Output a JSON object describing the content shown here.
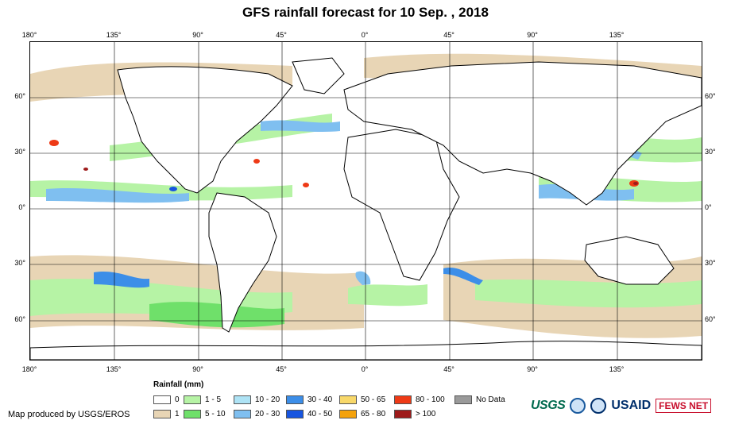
{
  "title": "GFS rainfall forecast for 10 Sep. , 2018",
  "longitude_labels": [
    "180°",
    "135°",
    "90°",
    "45°",
    "0°",
    "45°",
    "90°",
    "135°"
  ],
  "latitude_labels_left": [
    "60°",
    "30°",
    "0°",
    "30°",
    "60°"
  ],
  "latitude_labels_right": [
    "60°",
    "30°",
    "0°",
    "30°",
    "60°"
  ],
  "legend": {
    "title": "Rainfall (mm)",
    "items": [
      {
        "label": "0",
        "color": "#ffffff"
      },
      {
        "label": "1",
        "color": "#e8d5b5"
      },
      {
        "label": "1 - 5",
        "color": "#b6f3a5"
      },
      {
        "label": "5 - 10",
        "color": "#6fe06a"
      },
      {
        "label": "10 - 20",
        "color": "#aee3f5"
      },
      {
        "label": "20 - 30",
        "color": "#7fbff0"
      },
      {
        "label": "30 - 40",
        "color": "#3c8ee8"
      },
      {
        "label": "40 - 50",
        "color": "#1755e0"
      },
      {
        "label": "50 - 65",
        "color": "#f8d86a"
      },
      {
        "label": "65 - 80",
        "color": "#f4a20c"
      },
      {
        "label": "80 - 100",
        "color": "#ee3a16"
      },
      {
        "label": "> 100",
        "color": "#9e1b1b"
      },
      {
        "label": "No Data",
        "color": "#9a9a9a"
      }
    ]
  },
  "credit": "Map produced by USGS/EROS",
  "logos": {
    "usgs": "USGS",
    "usaid": "USAID",
    "fews": "FEWS NET"
  }
}
